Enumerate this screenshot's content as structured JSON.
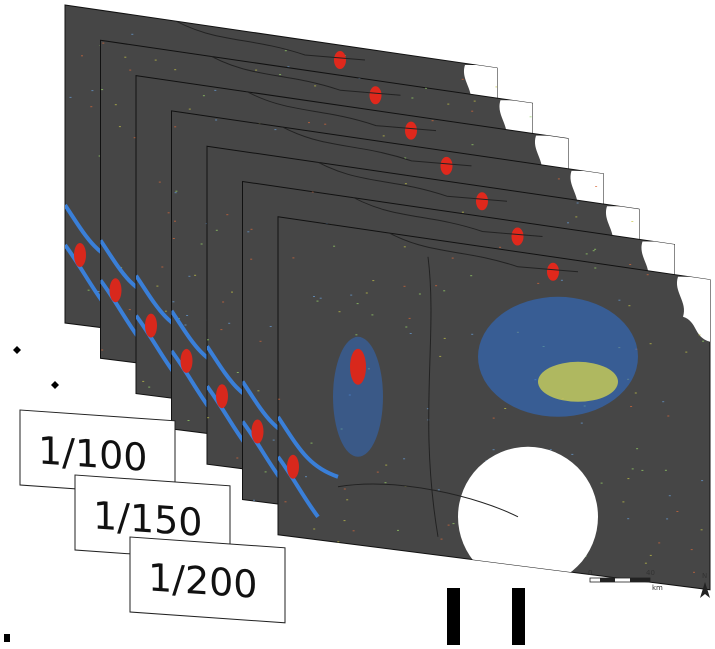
{
  "labels": [
    "1/100",
    "1/150",
    "1/200"
  ],
  "scale_bar": {
    "start": "0",
    "end": "40",
    "unit": "km",
    "north": "N"
  }
}
